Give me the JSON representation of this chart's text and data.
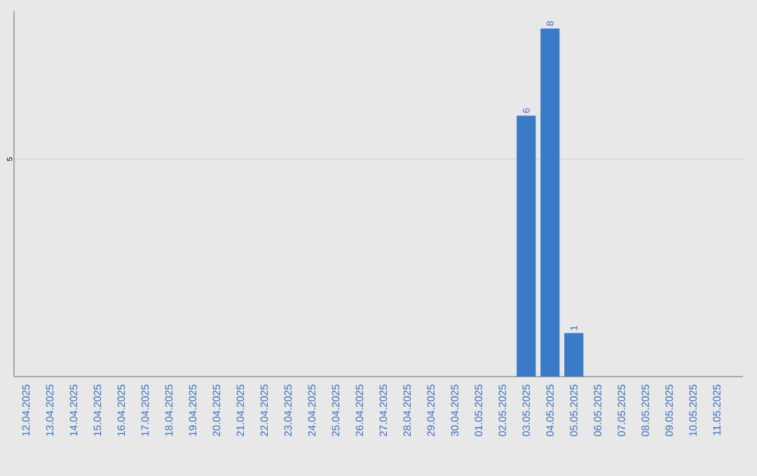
{
  "chart_data": {
    "type": "bar",
    "categories": [
      "12.04.2025",
      "13.04.2025",
      "14.04.2025",
      "15.04.2025",
      "16.04.2025",
      "17.04.2025",
      "18.04.2025",
      "19.04.2025",
      "20.04.2025",
      "21.04.2025",
      "22.04.2025",
      "23.04.2025",
      "24.04.2025",
      "25.04.2025",
      "26.04.2025",
      "27.04.2025",
      "28.04.2025",
      "29.04.2025",
      "30.04.2025",
      "01.05.2025",
      "02.05.2025",
      "03.05.2025",
      "04.05.2025",
      "05.05.2025",
      "06.05.2025",
      "07.05.2025",
      "08.05.2025",
      "09.05.2025",
      "10.05.2025",
      "11.05.2025"
    ],
    "values": [
      null,
      null,
      null,
      null,
      null,
      null,
      null,
      null,
      null,
      null,
      null,
      null,
      null,
      null,
      null,
      null,
      null,
      null,
      null,
      null,
      null,
      6,
      8,
      1,
      null,
      null,
      null,
      null,
      null,
      null
    ],
    "data_labels": true,
    "color": "#3a7bc8",
    "ylim": [
      0,
      8.4
    ],
    "yticks": [
      5
    ],
    "grid": "y"
  }
}
